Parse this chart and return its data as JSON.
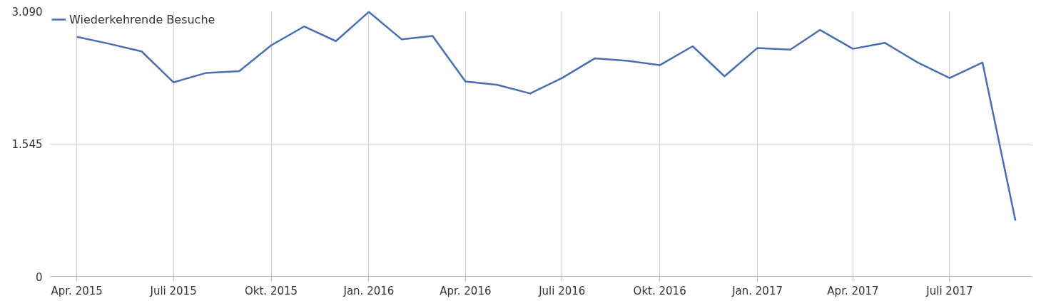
{
  "chart_data": {
    "type": "line",
    "x": [
      "2015-04",
      "2015-05",
      "2015-06",
      "2015-07",
      "2015-08",
      "2015-09",
      "2015-10",
      "2015-11",
      "2015-12",
      "2016-01",
      "2016-02",
      "2016-03",
      "2016-04",
      "2016-05",
      "2016-06",
      "2016-07",
      "2016-08",
      "2016-09",
      "2016-10",
      "2016-11",
      "2016-12",
      "2017-01",
      "2017-02",
      "2017-03",
      "2017-04",
      "2017-05",
      "2017-06",
      "2017-07",
      "2017-08",
      "2017-09"
    ],
    "series": [
      {
        "name": "Wiederkehrende Besuche",
        "color": "#4a6db3",
        "values": [
          2790,
          2710,
          2620,
          2260,
          2370,
          2390,
          2690,
          2910,
          2740,
          3080,
          2760,
          2800,
          2270,
          2230,
          2130,
          2310,
          2540,
          2510,
          2460,
          2680,
          2330,
          2660,
          2640,
          2870,
          2650,
          2720,
          2490,
          2310,
          2490,
          650
        ]
      }
    ],
    "xlim": [
      "2015-03-07",
      "2017-09-16"
    ],
    "xticks": [
      {
        "value": "2015-04",
        "label": "Apr. 2015"
      },
      {
        "value": "2015-07",
        "label": "Juli 2015"
      },
      {
        "value": "2015-10",
        "label": "Okt. 2015"
      },
      {
        "value": "2016-01",
        "label": "Jan. 2016"
      },
      {
        "value": "2016-04",
        "label": "Apr. 2016"
      },
      {
        "value": "2016-07",
        "label": "Juli 2016"
      },
      {
        "value": "2016-10",
        "label": "Okt. 2016"
      },
      {
        "value": "2017-01",
        "label": "Jan. 2017"
      },
      {
        "value": "2017-04",
        "label": "Apr. 2017"
      },
      {
        "value": "2017-07",
        "label": "Juli 2017"
      }
    ],
    "ylim": [
      0,
      3090
    ],
    "yticks": [
      {
        "value": 0,
        "label": "0"
      },
      {
        "value": 1545,
        "label": "1.545"
      },
      {
        "value": 3090,
        "label": "3.090"
      }
    ],
    "grid": true,
    "legend": "top left",
    "marker": "none",
    "line_style": "solid"
  }
}
